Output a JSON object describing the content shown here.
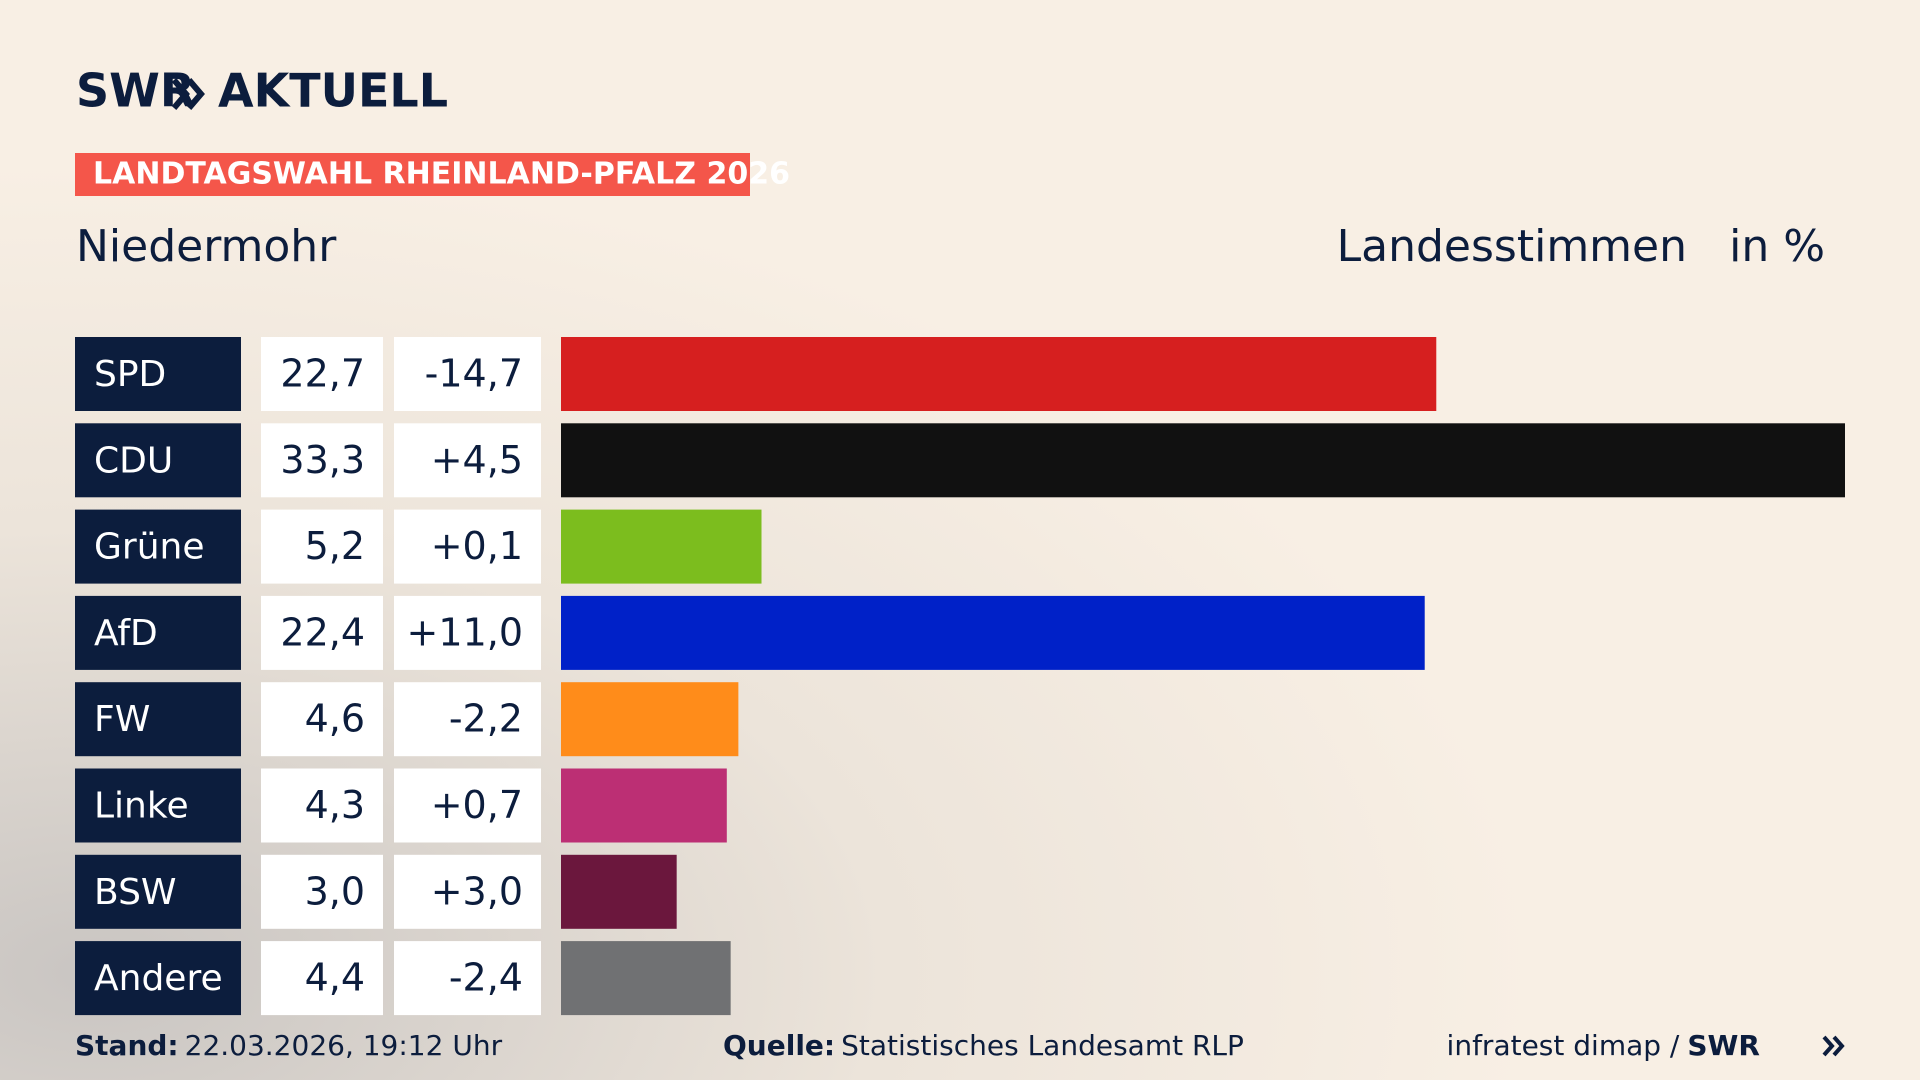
{
  "chart_data": {
    "type": "bar",
    "brand": "SWR",
    "brand_name": "AKTUELL",
    "title": "LANDTAGSWAHL RHEINLAND-PFALZ 2026",
    "subtitle": "Niedermohr",
    "measure": "Landesstimmen",
    "unit": "in %",
    "categories": [
      "SPD",
      "CDU",
      "Grüne",
      "AfD",
      "FW",
      "Linke",
      "BSW",
      "Andere"
    ],
    "values": [
      22.7,
      33.3,
      5.2,
      22.4,
      4.6,
      4.3,
      3.0,
      4.4
    ],
    "value_labels": [
      "22,7",
      "33,3",
      "5,2",
      "22,4",
      "4,6",
      "4,3",
      "3,0",
      "4,4"
    ],
    "changes": [
      -14.7,
      4.5,
      0.1,
      11.0,
      -2.2,
      0.7,
      3.0,
      -2.4
    ],
    "change_labels": [
      "-14,7",
      "+4,5",
      "+0,1",
      "+11,0",
      "-2,2",
      "+0,7",
      "+3,0",
      "-2,4"
    ],
    "colors": [
      "#d61f1f",
      "#111111",
      "#7cbd1e",
      "#0021c8",
      "#ff8c1a",
      "#bc2f74",
      "#6b173d",
      "#707173"
    ],
    "stand_label": "Stand:",
    "stand": "22.03.2026, 19:12 Uhr",
    "source_label": "Quelle:",
    "source": "Statistisches Landesamt RLP",
    "credit": "infratest dimap /",
    "credit_brand": "SWR"
  }
}
